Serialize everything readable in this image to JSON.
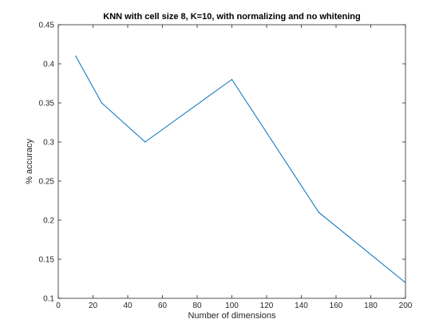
{
  "chart_data": {
    "type": "line",
    "title": "KNN with cell size 8, K=10, with normalizing and no whitening",
    "xlabel": "Number of dimensions",
    "ylabel": "% accuracy",
    "xlim": [
      0,
      200
    ],
    "ylim": [
      0.1,
      0.45
    ],
    "xticks": [
      "0",
      "20",
      "40",
      "60",
      "80",
      "100",
      "120",
      "140",
      "160",
      "180",
      "200"
    ],
    "yticks": [
      "0.1",
      "0.15",
      "0.2",
      "0.25",
      "0.3",
      "0.35",
      "0.4",
      "0.45"
    ],
    "grid": false,
    "series": [
      {
        "x": [
          10,
          25,
          50,
          100,
          150,
          200
        ],
        "y": [
          0.41,
          0.35,
          0.3,
          0.38,
          0.21,
          0.12
        ],
        "color": "#0072bd"
      }
    ]
  }
}
